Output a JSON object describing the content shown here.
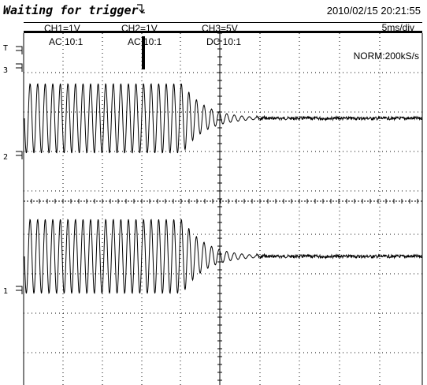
{
  "status": {
    "title": "Waiting for trigger",
    "datetime": "2010/02/15  20:21:55",
    "timebase": "5ms/div",
    "sample_mode": "NORM:200kS/s"
  },
  "channels": [
    {
      "label": "CH1=1V",
      "coupling": "AC  10:1"
    },
    {
      "label": "CH2=1V",
      "coupling": "AC  10:1"
    },
    {
      "label": "CH3=5V",
      "coupling": "DC  10:1"
    }
  ],
  "markers": {
    "trigger": "T",
    "ch3": "3",
    "ch2": "2",
    "ch1": "1"
  },
  "colors": {
    "trace": "#000000",
    "grid": "#000000",
    "background": "#ffffff"
  },
  "icons": {
    "trigger_state": "trigger-edge-icon"
  }
}
